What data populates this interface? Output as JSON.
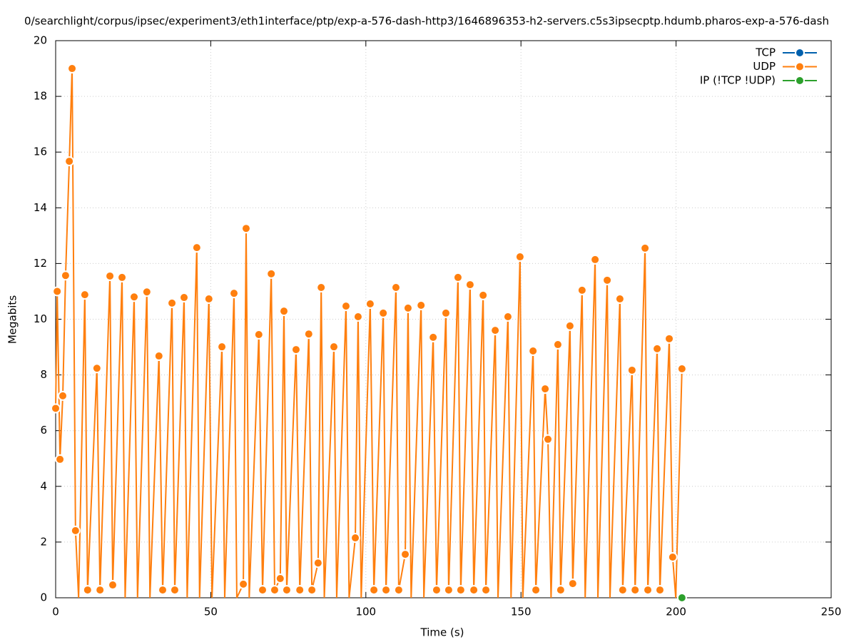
{
  "chart_data": {
    "type": "line",
    "title": "0/searchlight/corpus/ipsec/experiment3/eth1interface/ptp/exp-a-576-dash-http3/1646896353-h2-servers.c5s3ipsecptp.hdumb.pharos-exp-a-576-dash",
    "xlabel": "Time (s)",
    "ylabel": "Megabits",
    "xlim": [
      0,
      250
    ],
    "xticks": [
      0,
      50,
      100,
      150,
      200,
      250
    ],
    "ylim": [
      0,
      20
    ],
    "yticks": [
      0,
      2,
      4,
      6,
      8,
      10,
      12,
      14,
      16,
      18,
      20
    ],
    "grid": true,
    "legend": "top-right",
    "series": [
      {
        "name": "TCP",
        "color": "#0060ad",
        "x": [],
        "values": []
      },
      {
        "name": "UDP",
        "color": "#ff7f0e",
        "x": [
          0,
          0.5,
          1.4,
          2.3,
          3.2,
          4.4,
          5.3,
          6.4,
          7.4,
          9.4,
          10.3,
          13.3,
          14.3,
          17.5,
          18.4,
          21.4,
          22.4,
          25.3,
          26.4,
          29.4,
          30.4,
          33.3,
          34.5,
          37.5,
          38.4,
          41.4,
          42.4,
          45.5,
          46.4,
          49.4,
          50.4,
          53.6,
          54.5,
          57.5,
          58.4,
          60.5,
          61.4,
          62.4,
          65.5,
          66.7,
          69.5,
          70.6,
          72.4,
          73.6,
          74.5,
          77.5,
          78.7,
          81.6,
          82.6,
          84.6,
          85.6,
          86.6,
          89.7,
          90.6,
          93.6,
          94.6,
          96.6,
          97.5,
          98.5,
          101.4,
          102.6,
          105.6,
          106.5,
          109.7,
          110.6,
          112.7,
          113.6,
          114.6,
          117.8,
          118.7,
          121.7,
          122.8,
          125.8,
          126.7,
          129.7,
          130.6,
          133.6,
          134.8,
          137.8,
          138.7,
          141.7,
          142.6,
          145.8,
          146.8,
          149.7,
          150.6,
          153.9,
          154.8,
          157.8,
          158.7,
          159.7,
          161.9,
          162.8,
          165.8,
          166.7,
          169.7,
          170.7,
          173.9,
          174.8,
          177.8,
          178.7,
          181.9,
          182.8,
          185.8,
          186.8,
          190.0,
          190.9,
          193.9,
          194.8,
          197.8,
          198.9,
          199.9,
          201.9
        ],
        "values": [
          6.8,
          11.0,
          4.97,
          7.25,
          11.57,
          15.67,
          19.0,
          2.41,
          0,
          10.88,
          0.28,
          8.24,
          0.28,
          11.55,
          0.46,
          11.5,
          0,
          10.8,
          0,
          10.98,
          0,
          8.68,
          0.28,
          10.58,
          0.28,
          10.78,
          0,
          12.57,
          0,
          10.73,
          0,
          9.01,
          0,
          10.93,
          0,
          0.49,
          13.26,
          0,
          9.45,
          0.28,
          11.63,
          0.28,
          0.69,
          10.29,
          0.28,
          8.91,
          0.28,
          9.47,
          0.28,
          1.25,
          11.14,
          0,
          9.01,
          0,
          10.47,
          0,
          2.15,
          10.09,
          0,
          10.55,
          0.28,
          10.22,
          0.28,
          11.14,
          0.28,
          1.56,
          10.4,
          0,
          10.5,
          0,
          9.35,
          0.28,
          10.22,
          0.28,
          11.5,
          0.28,
          11.24,
          0.28,
          10.86,
          0.28,
          9.6,
          0,
          10.09,
          0,
          12.24,
          0,
          8.86,
          0.28,
          7.5,
          5.69,
          0,
          9.09,
          0.28,
          9.76,
          0.51,
          11.04,
          0,
          12.14,
          0,
          11.4,
          0,
          10.73,
          0.28,
          8.17,
          0.28,
          12.55,
          0.28,
          8.94,
          0.28,
          9.3,
          1.46,
          0,
          8.22
        ]
      },
      {
        "name": "IP (!TCP  !UDP)",
        "color": "#2ca02c",
        "x": [
          201.9
        ],
        "values": [
          0
        ]
      }
    ]
  }
}
